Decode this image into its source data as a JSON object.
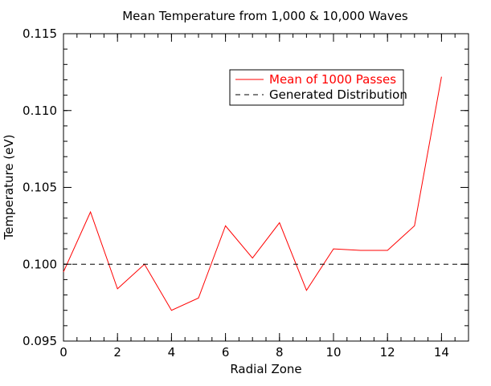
{
  "chart_data": {
    "type": "line",
    "title": "Mean Temperature from 1,000 & 10,000 Waves",
    "xlabel": "Radial Zone",
    "ylabel": "Temperature (eV)",
    "xlim": [
      0,
      15
    ],
    "ylim": [
      0.095,
      0.115
    ],
    "x_ticks": [
      {
        "value": 0,
        "label": "0"
      },
      {
        "value": 2,
        "label": "2"
      },
      {
        "value": 4,
        "label": "4"
      },
      {
        "value": 6,
        "label": "6"
      },
      {
        "value": 8,
        "label": "8"
      },
      {
        "value": 10,
        "label": "10"
      },
      {
        "value": 12,
        "label": "12"
      },
      {
        "value": 14,
        "label": "14"
      }
    ],
    "y_ticks": [
      {
        "value": 0.095,
        "label": "0.095"
      },
      {
        "value": 0.1,
        "label": "0.100"
      },
      {
        "value": 0.105,
        "label": "0.105"
      },
      {
        "value": 0.11,
        "label": "0.110"
      },
      {
        "value": 0.115,
        "label": "0.115"
      }
    ],
    "x_minor_step": 0.5,
    "y_minor_step": 0.001,
    "grid": false,
    "legend_position": "top-right",
    "series": [
      {
        "name": "Mean of 1000 Passes",
        "style": "solid",
        "color": "#ff0000",
        "x": [
          0,
          1,
          2,
          3,
          4,
          5,
          6,
          7,
          8,
          9,
          10,
          11,
          12,
          13,
          14
        ],
        "y": [
          0.0995,
          0.1034,
          0.0984,
          0.1,
          0.097,
          0.0978,
          0.1025,
          0.1004,
          0.1027,
          0.0983,
          0.101,
          0.1009,
          0.1009,
          0.1025,
          0.1122
        ]
      },
      {
        "name": "Generated Distribution",
        "style": "dashed",
        "color": "#000000",
        "x": [
          0,
          15
        ],
        "y": [
          0.1,
          0.1
        ]
      }
    ]
  }
}
